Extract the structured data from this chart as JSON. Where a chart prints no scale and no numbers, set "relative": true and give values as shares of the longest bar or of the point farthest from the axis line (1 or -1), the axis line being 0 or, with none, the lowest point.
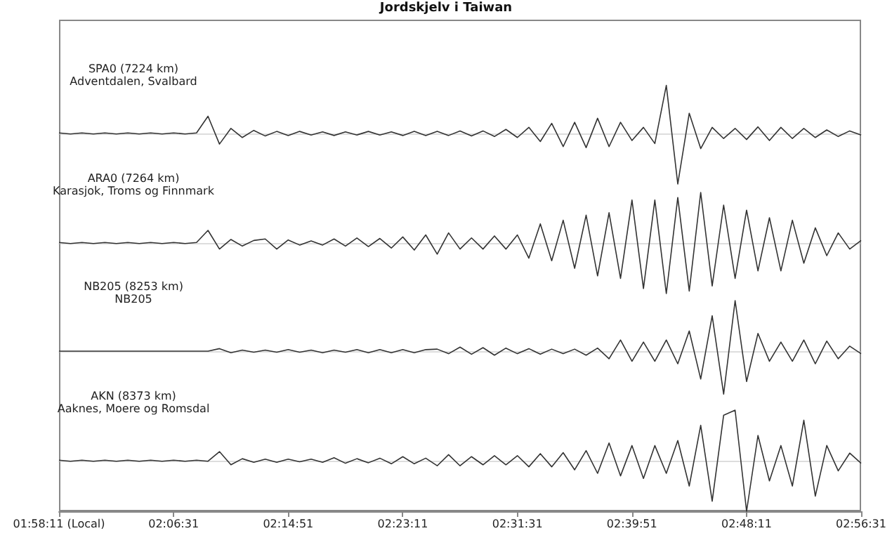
{
  "chart_data": [
    {
      "type": "line",
      "title": "SPA0 (7224 km)",
      "subtitle": "Adventdalen, Svalbard",
      "annotations": [
        "Jordskjelv i Taiwan"
      ],
      "relative": true,
      "tick_labels": false,
      "xlim": [
        1.9697,
        2.9419
      ],
      "x": [
        1.9697,
        1.9836,
        1.9975,
        2.0114,
        2.0253,
        2.0392,
        2.0531,
        2.0669,
        2.0808,
        2.0947,
        2.1086,
        2.1225,
        2.1364,
        2.1503,
        2.1642,
        2.1781,
        2.1919,
        2.2058,
        2.2197,
        2.2336,
        2.2475,
        2.2614,
        2.2753,
        2.2892,
        2.3031,
        2.3169,
        2.3308,
        2.3447,
        2.3586,
        2.3725,
        2.3864,
        2.4003,
        2.4142,
        2.4281,
        2.4419,
        2.4558,
        2.4697,
        2.4836,
        2.4975,
        2.5114,
        2.5253,
        2.5392,
        2.5531,
        2.5669,
        2.5808,
        2.5947,
        2.6086,
        2.6225,
        2.6364,
        2.6503,
        2.6642,
        2.6781,
        2.6919,
        2.7058,
        2.7197,
        2.7336,
        2.7475,
        2.7614,
        2.7753,
        2.7892,
        2.8031,
        2.8169,
        2.8308,
        2.8447,
        2.8586,
        2.8725,
        2.8864,
        2.9003,
        2.9142,
        2.9281,
        2.9419
      ],
      "series": [
        {
          "color": "#333333",
          "values": [
            0.01,
            -0.01,
            0.01,
            -0.01,
            0.01,
            -0.01,
            0.01,
            -0.01,
            0.01,
            -0.01,
            0.01,
            -0.01,
            0.01,
            0.34,
            -0.21,
            0.1,
            -0.08,
            0.06,
            -0.05,
            0.04,
            -0.04,
            0.04,
            -0.03,
            0.03,
            -0.04,
            0.03,
            -0.03,
            0.04,
            -0.03,
            0.03,
            -0.04,
            0.04,
            -0.04,
            0.04,
            -0.04,
            0.05,
            -0.05,
            0.05,
            -0.06,
            0.08,
            -0.08,
            0.12,
            -0.16,
            0.2,
            -0.26,
            0.22,
            -0.28,
            0.3,
            -0.26,
            0.22,
            -0.14,
            0.12,
            -0.2,
            0.95,
            -1,
            0.4,
            -0.3,
            0.12,
            -0.1,
            0.1,
            -0.12,
            0.13,
            -0.14,
            0.12,
            -0.1,
            0.1,
            -0.08,
            0.07,
            -0.06,
            0.05,
            -0.03
          ]
        }
      ]
    },
    {
      "type": "line",
      "title": "ARA0 (7264 km)",
      "subtitle": "Karasjok, Troms og Finnmark",
      "relative": true,
      "tick_labels": false,
      "xlim": [
        1.9697,
        2.9419
      ],
      "x": [
        1.9697,
        1.9836,
        1.9975,
        2.0114,
        2.0253,
        2.0392,
        2.0531,
        2.0669,
        2.0808,
        2.0947,
        2.1086,
        2.1225,
        2.1364,
        2.1503,
        2.1642,
        2.1781,
        2.1919,
        2.2058,
        2.2197,
        2.2336,
        2.2475,
        2.2614,
        2.2753,
        2.2892,
        2.3031,
        2.3169,
        2.3308,
        2.3447,
        2.3586,
        2.3725,
        2.3864,
        2.4003,
        2.4142,
        2.4281,
        2.4419,
        2.4558,
        2.4697,
        2.4836,
        2.4975,
        2.5114,
        2.5253,
        2.5392,
        2.5531,
        2.5669,
        2.5808,
        2.5947,
        2.6086,
        2.6225,
        2.6364,
        2.6503,
        2.6642,
        2.6781,
        2.6919,
        2.7058,
        2.7197,
        2.7336,
        2.7475,
        2.7614,
        2.7753,
        2.7892,
        2.8031,
        2.8169,
        2.8308,
        2.8447,
        2.8586,
        2.8725,
        2.8864,
        2.9003,
        2.9142,
        2.9281,
        2.9419
      ],
      "series": [
        {
          "color": "#333333",
          "values": [
            0.01,
            -0.01,
            0.01,
            -0.01,
            0.01,
            -0.01,
            0.01,
            -0.01,
            0.01,
            -0.01,
            0.01,
            -0.01,
            0.01,
            0.25,
            -0.12,
            0.07,
            -0.06,
            0.05,
            0.08,
            -0.12,
            0.06,
            -0.04,
            0.04,
            -0.04,
            0.08,
            -0.06,
            0.1,
            -0.07,
            0.09,
            -0.1,
            0.12,
            -0.14,
            0.16,
            -0.22,
            0.2,
            -0.12,
            0.1,
            -0.12,
            0.14,
            -0.12,
            0.16,
            -0.3,
            0.38,
            -0.35,
            0.45,
            -0.5,
            0.55,
            -0.65,
            0.6,
            -0.7,
            0.85,
            -0.9,
            0.85,
            -1,
            0.9,
            -0.95,
            1,
            -0.85,
            0.75,
            -0.7,
            0.65,
            -0.55,
            0.5,
            -0.55,
            0.45,
            -0.4,
            0.3,
            -0.25,
            0.2,
            -0.12,
            0.05
          ]
        }
      ]
    },
    {
      "type": "line",
      "title": "NB205 (8253 km)",
      "subtitle": "NB205",
      "relative": true,
      "tick_labels": false,
      "xlim": [
        1.9697,
        2.9419
      ],
      "x": [
        1.9697,
        1.9836,
        1.9975,
        2.0114,
        2.0253,
        2.0392,
        2.0531,
        2.0669,
        2.0808,
        2.0947,
        2.1086,
        2.1225,
        2.1364,
        2.1503,
        2.1642,
        2.1781,
        2.1919,
        2.2058,
        2.2197,
        2.2336,
        2.2475,
        2.2614,
        2.2753,
        2.2892,
        2.3031,
        2.3169,
        2.3308,
        2.3447,
        2.3586,
        2.3725,
        2.3864,
        2.4003,
        2.4142,
        2.4281,
        2.4419,
        2.4558,
        2.4697,
        2.4836,
        2.4975,
        2.5114,
        2.5253,
        2.5392,
        2.5531,
        2.5669,
        2.5808,
        2.5947,
        2.6086,
        2.6225,
        2.6364,
        2.6503,
        2.6642,
        2.6781,
        2.6919,
        2.7058,
        2.7197,
        2.7336,
        2.7475,
        2.7614,
        2.7753,
        2.7892,
        2.8031,
        2.8169,
        2.8308,
        2.8447,
        2.8586,
        2.8725,
        2.8864,
        2.9003,
        2.9142,
        2.9281,
        2.9419
      ],
      "series": [
        {
          "color": "#333333",
          "values": [
            0,
            0,
            0,
            0,
            0,
            0,
            0,
            0,
            0,
            0,
            0,
            0,
            0,
            0,
            0.05,
            -0.03,
            0.02,
            -0.02,
            0.02,
            -0.02,
            0.03,
            -0.02,
            0.02,
            -0.03,
            0.02,
            -0.02,
            0.03,
            -0.03,
            0.03,
            -0.03,
            0.03,
            -0.03,
            0.03,
            0.04,
            -0.05,
            0.08,
            -0.06,
            0.07,
            -0.08,
            0.06,
            -0.05,
            0.05,
            -0.06,
            0.04,
            -0.05,
            0.04,
            -0.08,
            0.06,
            -0.15,
            0.22,
            -0.2,
            0.18,
            -0.2,
            0.22,
            -0.25,
            0.4,
            -0.55,
            0.7,
            -0.85,
            1,
            -0.6,
            0.35,
            -0.2,
            0.18,
            -0.2,
            0.22,
            -0.25,
            0.2,
            -0.15,
            0.1,
            -0.05
          ]
        }
      ]
    },
    {
      "type": "line",
      "title": "AKN (8373 km)",
      "subtitle": "Aaknes, Moere og Romsdal",
      "relative": true,
      "tick_labels": "x",
      "xlim": [
        1.9697,
        2.9419
      ],
      "xticks": [
        {
          "value": 1.9697,
          "label": "01:58:11 (Local)"
        },
        {
          "value": 2.1086,
          "label": "02:06:31"
        },
        {
          "value": 2.2475,
          "label": "02:14:51"
        },
        {
          "value": 2.3864,
          "label": "02:23:11"
        },
        {
          "value": 2.5253,
          "label": "02:31:31"
        },
        {
          "value": 2.6642,
          "label": "02:39:51"
        },
        {
          "value": 2.8031,
          "label": "02:48:11"
        },
        {
          "value": 2.9419,
          "label": "02:56:31"
        }
      ],
      "x": [
        1.9697,
        1.9836,
        1.9975,
        2.0114,
        2.0253,
        2.0392,
        2.0531,
        2.0669,
        2.0808,
        2.0947,
        2.1086,
        2.1225,
        2.1364,
        2.1503,
        2.1642,
        2.1781,
        2.1919,
        2.2058,
        2.2197,
        2.2336,
        2.2475,
        2.2614,
        2.2753,
        2.2892,
        2.3031,
        2.3169,
        2.3308,
        2.3447,
        2.3586,
        2.3725,
        2.3864,
        2.4003,
        2.4142,
        2.4281,
        2.4419,
        2.4558,
        2.4697,
        2.4836,
        2.4975,
        2.5114,
        2.5253,
        2.5392,
        2.5531,
        2.5669,
        2.5808,
        2.5947,
        2.6086,
        2.6225,
        2.6364,
        2.6503,
        2.6642,
        2.6781,
        2.6919,
        2.7058,
        2.7197,
        2.7336,
        2.7475,
        2.7614,
        2.7753,
        2.7892,
        2.8031,
        2.8169,
        2.8308,
        2.8447,
        2.8586,
        2.8725,
        2.8864,
        2.9003,
        2.9142,
        2.9281,
        2.9419
      ],
      "series": [
        {
          "color": "#333333",
          "values": [
            0.01,
            -0.01,
            0.01,
            -0.01,
            0.01,
            -0.01,
            0.01,
            -0.01,
            0.01,
            -0.01,
            0.01,
            -0.01,
            0.01,
            -0.01,
            0.18,
            -0.08,
            0.04,
            -0.03,
            0.03,
            -0.03,
            0.03,
            -0.02,
            0.03,
            -0.03,
            0.06,
            -0.05,
            0.04,
            -0.04,
            0.05,
            -0.06,
            0.08,
            -0.06,
            0.05,
            -0.1,
            0.12,
            -0.1,
            0.08,
            -0.08,
            0.1,
            -0.08,
            0.1,
            -0.12,
            0.14,
            -0.12,
            0.16,
            -0.18,
            0.2,
            -0.25,
            0.35,
            -0.3,
            0.3,
            -0.35,
            0.3,
            -0.25,
            0.4,
            -0.5,
            0.7,
            -0.8,
            0.9,
            1,
            -1,
            0.5,
            -0.4,
            0.3,
            -0.5,
            0.8,
            -0.7,
            0.3,
            -0.2,
            0.15,
            -0.05
          ]
        }
      ]
    }
  ]
}
